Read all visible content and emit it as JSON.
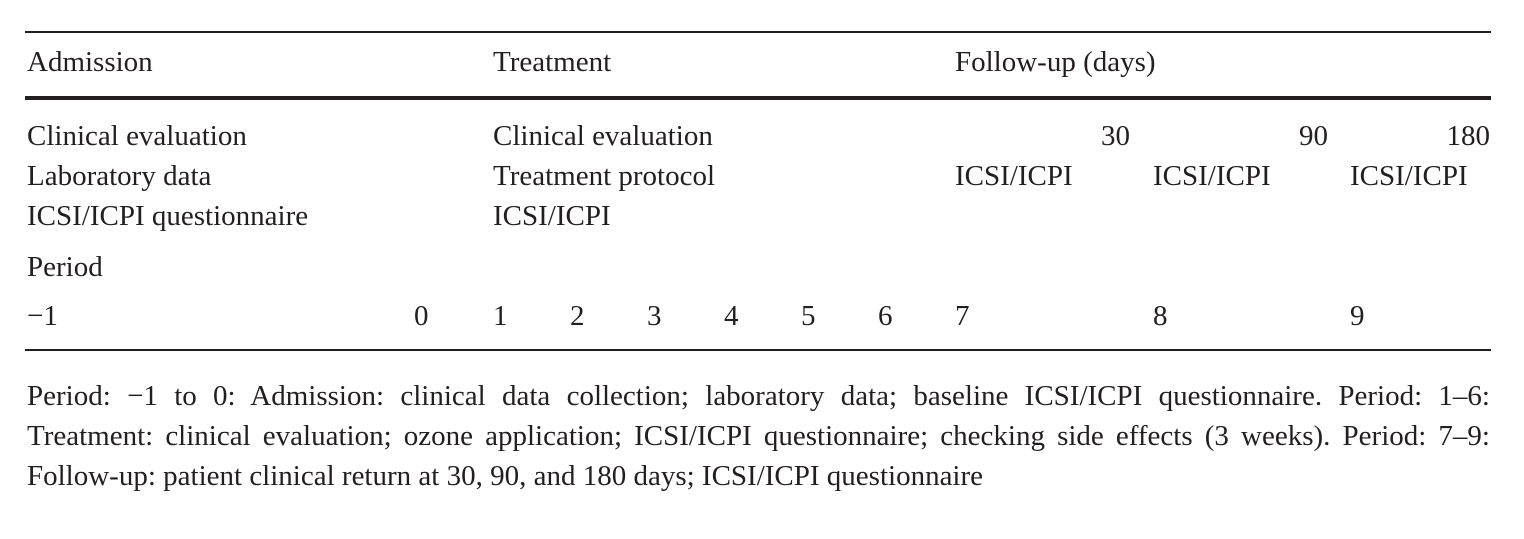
{
  "header": {
    "admission": "Admission",
    "treatment": "Treatment",
    "followup": "Follow-up (days)"
  },
  "admission_col": [
    "Clinical evaluation",
    "Laboratory data",
    "ICSI/ICPI questionnaire"
  ],
  "treatment_col": [
    "Clinical evaluation",
    "Treatment protocol",
    "ICSI/ICPI"
  ],
  "followup_days": [
    "30",
    "90",
    "180"
  ],
  "followup_items": [
    "ICSI/ICPI",
    "ICSI/ICPI",
    "ICSI/ICPI"
  ],
  "period_label": "Period",
  "periods": [
    "−1",
    "0",
    "1",
    "2",
    "3",
    "4",
    "5",
    "6",
    "7",
    "8",
    "9"
  ],
  "footnote": "Period: −1 to 0: Admission: clinical data collection; laboratory data; baseline ICSI/ICPI questionnaire. Period: 1–6: Treatment: clinical evaluation; ozone application; ICSI/ICPI questionnaire; checking side effects (3 weeks). Period: 7–9: Follow-up: patient clinical return at 30, 90, and 180 days; ICSI/ICPI ques­tionnaire"
}
